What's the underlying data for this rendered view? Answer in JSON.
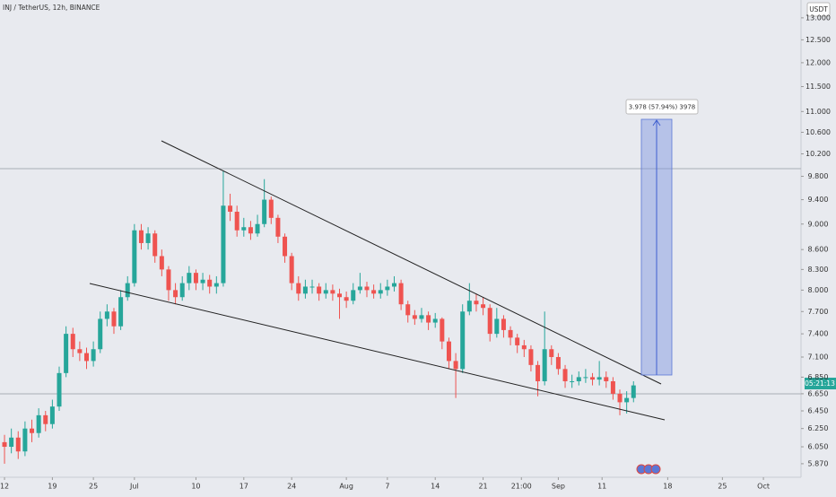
{
  "chart_data": {
    "type": "candlestick",
    "title": "INJ / TetherUS, 12h, BINANCE",
    "currency": "USDT",
    "countdown": "05:21:13",
    "measure_label": "3.978 (57.94%) 3978",
    "log_scale": true,
    "up_color": "#26a69a",
    "down_color": "#ef5350",
    "xlim": [
      -0.66,
      116.5
    ],
    "ylim": [
      5.73,
      13.42
    ],
    "xticks": [
      {
        "value": 0,
        "label": "12"
      },
      {
        "value": 7,
        "label": "19"
      },
      {
        "value": 13,
        "label": "25"
      },
      {
        "value": 19,
        "label": "Jul"
      },
      {
        "value": 28,
        "label": "10"
      },
      {
        "value": 35,
        "label": "17"
      },
      {
        "value": 42,
        "label": "24"
      },
      {
        "value": 50,
        "label": "Aug"
      },
      {
        "value": 56,
        "label": "7"
      },
      {
        "value": 63,
        "label": "14"
      },
      {
        "value": 70,
        "label": "21"
      },
      {
        "value": 75.6,
        "label": "21:00"
      },
      {
        "value": 81,
        "label": "Sep"
      },
      {
        "value": 87.4,
        "label": "11"
      },
      {
        "value": 97,
        "label": "18"
      },
      {
        "value": 105,
        "label": "25"
      },
      {
        "value": 111,
        "label": "Oct"
      }
    ],
    "yticks": [
      {
        "value": 5.87,
        "label": "5.870"
      },
      {
        "value": 6.05,
        "label": "6.050"
      },
      {
        "value": 6.25,
        "label": "6.250"
      },
      {
        "value": 6.45,
        "label": "6.450"
      },
      {
        "value": 6.65,
        "label": "6.650"
      },
      {
        "value": 6.85,
        "label": "6.850"
      },
      {
        "value": 7.1,
        "label": "7.100"
      },
      {
        "value": 7.4,
        "label": "7.400"
      },
      {
        "value": 7.7,
        "label": "7.700"
      },
      {
        "value": 8,
        "label": "8.000"
      },
      {
        "value": 8.3,
        "label": "8.300"
      },
      {
        "value": 8.6,
        "label": "8.600"
      },
      {
        "value": 9,
        "label": "9.000"
      },
      {
        "value": 9.4,
        "label": "9.400"
      },
      {
        "value": 9.8,
        "label": "9.800"
      },
      {
        "value": 10.2,
        "label": "10.200"
      },
      {
        "value": 10.6,
        "label": "10.600"
      },
      {
        "value": 11,
        "label": "11.000"
      },
      {
        "value": 11.5,
        "label": "11.500"
      },
      {
        "value": 12,
        "label": "12.000"
      },
      {
        "value": 12.5,
        "label": "12.500"
      },
      {
        "value": 13,
        "label": "13.000"
      }
    ],
    "x": [
      0,
      1,
      2,
      3,
      4,
      5,
      6,
      7,
      8,
      9,
      10,
      11,
      12,
      13,
      14,
      15,
      16,
      17,
      18,
      19,
      20,
      21,
      22,
      23,
      24,
      25,
      26,
      27,
      28,
      29,
      30,
      31,
      32,
      33,
      34,
      35,
      36,
      37,
      38,
      39,
      40,
      41,
      42,
      43,
      44,
      45,
      46,
      47,
      48,
      49,
      50,
      51,
      52,
      53,
      54,
      55,
      56,
      57,
      58,
      59,
      60,
      61,
      62,
      63,
      64,
      65,
      66,
      67,
      68,
      69,
      70,
      71,
      72,
      73,
      74,
      75,
      76,
      77,
      78,
      79,
      80,
      81,
      82,
      83,
      84,
      85,
      86,
      87,
      88,
      89,
      90,
      91,
      92
    ],
    "open": [
      6.1,
      6.05,
      6.15,
      6.0,
      6.25,
      6.2,
      6.4,
      6.3,
      6.5,
      6.9,
      7.4,
      7.2,
      7.15,
      7.05,
      7.2,
      7.6,
      7.7,
      7.5,
      7.9,
      8.1,
      8.9,
      8.7,
      8.85,
      8.5,
      8.3,
      8.0,
      7.9,
      8.1,
      8.25,
      8.1,
      8.15,
      8.05,
      8.1,
      9.3,
      9.2,
      8.9,
      8.95,
      8.85,
      9.0,
      9.4,
      9.1,
      8.8,
      8.5,
      8.1,
      7.95,
      8.05,
      8.05,
      7.95,
      8.0,
      7.95,
      7.9,
      7.85,
      8.0,
      8.05,
      8.0,
      7.95,
      8.0,
      8.05,
      8.1,
      7.8,
      7.65,
      7.6,
      7.65,
      7.55,
      7.6,
      7.3,
      7.05,
      6.95,
      7.7,
      7.85,
      7.8,
      7.75,
      7.4,
      7.6,
      7.45,
      7.35,
      7.25,
      7.2,
      7.0,
      6.8,
      7.2,
      7.1,
      6.95,
      6.8,
      6.8,
      6.85,
      6.85,
      6.82,
      6.85,
      6.8,
      6.65,
      6.55,
      6.6
    ],
    "high": [
      6.18,
      6.25,
      6.22,
      6.33,
      6.35,
      6.48,
      6.45,
      6.58,
      6.98,
      7.5,
      7.48,
      7.3,
      7.22,
      7.3,
      7.7,
      7.8,
      7.75,
      8.0,
      8.2,
      9.0,
      9.0,
      8.95,
      8.9,
      8.6,
      8.35,
      8.1,
      8.2,
      8.35,
      8.3,
      8.25,
      8.22,
      8.2,
      9.9,
      9.5,
      9.3,
      9.1,
      9.05,
      9.15,
      9.75,
      9.45,
      9.15,
      8.85,
      8.55,
      8.2,
      8.15,
      8.15,
      8.1,
      8.1,
      8.08,
      8.02,
      7.98,
      8.1,
      8.25,
      8.12,
      8.08,
      8.1,
      8.15,
      8.2,
      8.15,
      7.85,
      7.72,
      7.75,
      7.7,
      7.68,
      7.62,
      7.35,
      7.15,
      7.8,
      8.1,
      7.95,
      7.9,
      7.8,
      7.75,
      7.65,
      7.5,
      7.4,
      7.32,
      7.25,
      7.05,
      7.7,
      7.25,
      7.15,
      7.0,
      6.88,
      6.92,
      6.95,
      6.9,
      7.05,
      6.92,
      6.85,
      6.7,
      6.68,
      6.8
    ],
    "low": [
      5.87,
      5.98,
      5.92,
      5.95,
      6.1,
      6.15,
      6.22,
      6.25,
      6.45,
      6.85,
      7.1,
      7.05,
      6.95,
      6.98,
      7.15,
      7.5,
      7.4,
      7.45,
      7.85,
      8.05,
      8.6,
      8.6,
      8.4,
      8.2,
      7.85,
      7.8,
      7.85,
      8.0,
      8.0,
      8.0,
      7.95,
      7.95,
      8.05,
      9.05,
      8.8,
      8.8,
      8.75,
      8.8,
      8.95,
      9.0,
      8.7,
      8.4,
      8.0,
      7.85,
      7.88,
      7.95,
      7.85,
      7.88,
      7.85,
      7.6,
      7.75,
      7.8,
      7.95,
      7.9,
      7.88,
      7.88,
      7.92,
      7.98,
      7.72,
      7.55,
      7.52,
      7.55,
      7.45,
      7.48,
      7.2,
      6.95,
      6.6,
      6.9,
      7.65,
      7.7,
      7.65,
      7.3,
      7.35,
      7.35,
      7.25,
      7.15,
      7.1,
      6.92,
      6.62,
      6.75,
      7.0,
      6.88,
      6.72,
      6.72,
      6.75,
      6.78,
      6.75,
      6.75,
      6.72,
      6.58,
      6.4,
      6.42,
      6.55
    ],
    "close": [
      6.05,
      6.15,
      6.0,
      6.25,
      6.2,
      6.4,
      6.3,
      6.5,
      6.9,
      7.4,
      7.2,
      7.15,
      7.05,
      7.2,
      7.6,
      7.7,
      7.5,
      7.9,
      8.1,
      8.9,
      8.7,
      8.85,
      8.5,
      8.3,
      8.0,
      7.9,
      8.1,
      8.25,
      8.1,
      8.15,
      8.05,
      8.1,
      9.3,
      9.2,
      8.9,
      8.95,
      8.85,
      9.0,
      9.4,
      9.1,
      8.8,
      8.5,
      8.1,
      7.95,
      8.05,
      8.05,
      7.95,
      8.0,
      7.95,
      7.9,
      7.85,
      8.0,
      8.05,
      8.0,
      7.95,
      8.0,
      8.05,
      8.1,
      7.8,
      7.65,
      7.6,
      7.65,
      7.55,
      7.6,
      7.3,
      7.05,
      6.95,
      7.7,
      7.85,
      7.8,
      7.75,
      7.4,
      7.6,
      7.45,
      7.35,
      7.25,
      7.2,
      7.0,
      6.8,
      7.2,
      7.1,
      6.95,
      6.8,
      6.8,
      6.85,
      6.85,
      6.82,
      6.85,
      6.8,
      6.65,
      6.55,
      6.6,
      6.75
    ]
  }
}
